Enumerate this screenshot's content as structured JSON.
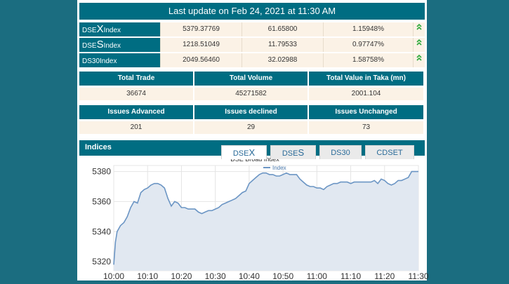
{
  "header": {
    "last_update": "Last update on Feb 24, 2021 at 11:30 AM"
  },
  "indices": [
    {
      "prefix": "DSE",
      "big": "X",
      "suffix": " Index",
      "value": "5379.37769",
      "change": "61.65800",
      "percent": "1.15948%",
      "trend_icon": "double-chevron-up-icon",
      "trend_glyph": "⌃"
    },
    {
      "prefix": "DSE",
      "big": "S",
      "suffix": " Index",
      "value": "1218.51049",
      "change": "11.79533",
      "percent": "0.97747%",
      "trend_icon": "double-chevron-up-icon",
      "trend_glyph": "⌃"
    },
    {
      "prefix": "DS30",
      "big": "",
      "suffix": " Index",
      "value": "2049.56460",
      "change": "32.02988",
      "percent": "1.58758%",
      "trend_icon": "double-chevron-up-icon",
      "trend_glyph": "⌃"
    }
  ],
  "trade_stats": {
    "headers": [
      "Total Trade",
      "Total Volume",
      "Total Value in Taka (mn)"
    ],
    "values": [
      "36674",
      "45271582",
      "2001.104"
    ]
  },
  "issue_stats": {
    "headers": [
      "Issues Advanced",
      "Issues declined",
      "Issues Unchanged"
    ],
    "values": [
      "201",
      "29",
      "73"
    ]
  },
  "chart_panel": {
    "title": "Indices",
    "tabs": [
      {
        "prefix": "DSE",
        "big": "X",
        "active": true
      },
      {
        "prefix": "DSE",
        "big": "S",
        "active": false
      },
      {
        "prefix": "DS30",
        "big": "",
        "active": false
      },
      {
        "prefix": "CDSET",
        "big": "",
        "active": false
      }
    ]
  },
  "colors": {
    "accent": "#006d82",
    "background": "#1b6d80",
    "cell_bg": "#fbf2e6",
    "line": "#6b95c4",
    "fill": "#e1e8f1",
    "up_arrow": "#2eaa3c"
  },
  "chart_data": {
    "type": "area",
    "title": "DSE Broad Index",
    "legend": [
      "Index"
    ],
    "legend_position": "top-center",
    "xlabels": [
      "10:00",
      "10:10",
      "10:20",
      "10:30",
      "10:40",
      "10:50",
      "11:00",
      "11:10",
      "11:20",
      "11:30"
    ],
    "yticks": [
      5320,
      5340,
      5360,
      5380
    ],
    "ylim": [
      5314,
      5384
    ],
    "xlim": [
      0,
      90
    ],
    "grid": true,
    "series": [
      {
        "name": "Index",
        "points": [
          [
            0,
            5318
          ],
          [
            0.5,
            5333
          ],
          [
            1,
            5340
          ],
          [
            2,
            5344
          ],
          [
            3,
            5346
          ],
          [
            4,
            5350
          ],
          [
            5,
            5356
          ],
          [
            6,
            5360
          ],
          [
            7,
            5359
          ],
          [
            8,
            5366
          ],
          [
            9,
            5368
          ],
          [
            10,
            5369
          ],
          [
            11,
            5371
          ],
          [
            12,
            5372
          ],
          [
            13,
            5372
          ],
          [
            14,
            5371
          ],
          [
            15,
            5369
          ],
          [
            16,
            5362
          ],
          [
            17,
            5357
          ],
          [
            18,
            5360
          ],
          [
            19,
            5359
          ],
          [
            20,
            5356
          ],
          [
            21,
            5356
          ],
          [
            22,
            5355
          ],
          [
            23,
            5355
          ],
          [
            24,
            5355
          ],
          [
            25,
            5353
          ],
          [
            26,
            5352
          ],
          [
            27,
            5353
          ],
          [
            28,
            5354
          ],
          [
            29,
            5354
          ],
          [
            30,
            5355
          ],
          [
            31,
            5356
          ],
          [
            32,
            5358
          ],
          [
            33,
            5359
          ],
          [
            34,
            5360
          ],
          [
            35,
            5361
          ],
          [
            36,
            5362
          ],
          [
            37,
            5364
          ],
          [
            38,
            5366
          ],
          [
            39,
            5367
          ],
          [
            40,
            5372
          ],
          [
            41,
            5374
          ],
          [
            42,
            5376
          ],
          [
            43,
            5378
          ],
          [
            44,
            5379
          ],
          [
            45,
            5379
          ],
          [
            46,
            5378
          ],
          [
            47,
            5378
          ],
          [
            48,
            5377
          ],
          [
            49,
            5377
          ],
          [
            50,
            5378
          ],
          [
            51,
            5379
          ],
          [
            52,
            5378
          ],
          [
            53,
            5378
          ],
          [
            54,
            5378
          ],
          [
            55,
            5375
          ],
          [
            56,
            5373
          ],
          [
            57,
            5371
          ],
          [
            58,
            5370
          ],
          [
            59,
            5370
          ],
          [
            60,
            5369
          ],
          [
            61,
            5369
          ],
          [
            62,
            5368
          ],
          [
            63,
            5370
          ],
          [
            64,
            5371
          ],
          [
            65,
            5372
          ],
          [
            66,
            5372
          ],
          [
            67,
            5373
          ],
          [
            68,
            5373
          ],
          [
            69,
            5373
          ],
          [
            70,
            5372
          ],
          [
            71,
            5373
          ],
          [
            72,
            5373
          ],
          [
            73,
            5373
          ],
          [
            74,
            5373
          ],
          [
            75,
            5373
          ],
          [
            76,
            5373
          ],
          [
            77,
            5374
          ],
          [
            78,
            5372
          ],
          [
            79,
            5375
          ],
          [
            80,
            5374
          ],
          [
            81,
            5372
          ],
          [
            82,
            5371
          ],
          [
            83,
            5372
          ],
          [
            84,
            5374
          ],
          [
            85,
            5374
          ],
          [
            86,
            5375
          ],
          [
            87,
            5376
          ],
          [
            88,
            5380
          ],
          [
            89,
            5380
          ],
          [
            90,
            5380
          ]
        ]
      }
    ]
  }
}
